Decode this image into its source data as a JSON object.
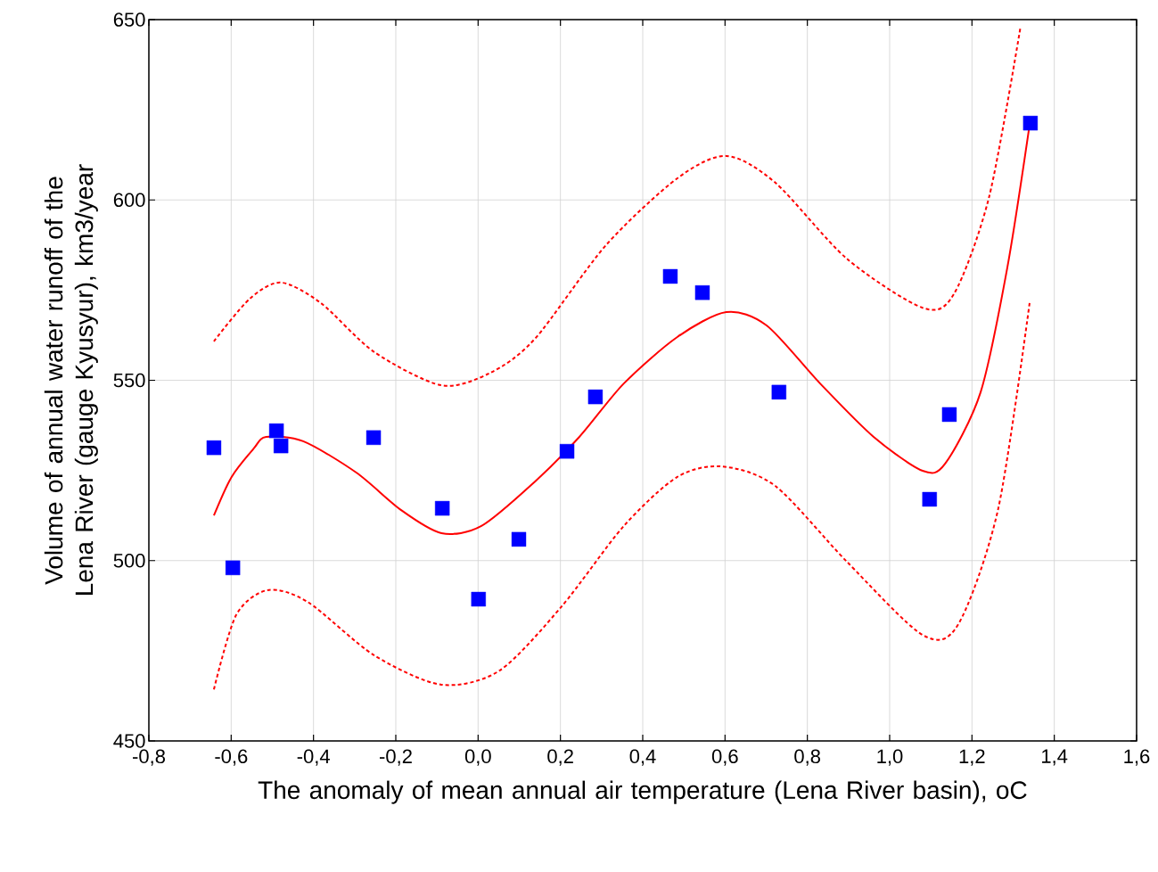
{
  "chart_data": {
    "type": "scatter",
    "xlabel": "The anomaly of mean annual air temperature (Lena River basin), oC",
    "ylabel": "Volume of annual water runoff of the Lena River (gauge Kyusyur), km3/year",
    "xlim": [
      -0.8,
      1.6
    ],
    "xticks": [
      {
        "value": -0.8,
        "label": "-0,8"
      },
      {
        "value": -0.6,
        "label": "-0,6"
      },
      {
        "value": -0.4,
        "label": "-0,4"
      },
      {
        "value": -0.2,
        "label": "-0,2"
      },
      {
        "value": 0.0,
        "label": "0,0"
      },
      {
        "value": 0.2,
        "label": "0,2"
      },
      {
        "value": 0.4,
        "label": "0,4"
      },
      {
        "value": 0.6,
        "label": "0,6"
      },
      {
        "value": 0.8,
        "label": "0,8"
      },
      {
        "value": 1.0,
        "label": "1,0"
      },
      {
        "value": 1.2,
        "label": "1,2"
      },
      {
        "value": 1.4,
        "label": "1,4"
      },
      {
        "value": 1.6,
        "label": "1,6"
      }
    ],
    "ylim": [
      450,
      650
    ],
    "yticks": [
      450,
      500,
      550,
      600,
      650
    ],
    "grid": true,
    "series": [
      {
        "type": "scatter",
        "color": "#0000ff",
        "marker": "square",
        "x": [
          -0.642,
          -0.596,
          -0.49,
          -0.479,
          -0.254,
          -0.087,
          0.001,
          0.099,
          0.216,
          0.285,
          0.467,
          0.545,
          0.731,
          1.097,
          1.145,
          1.342
        ],
        "values": [
          531.3,
          498.0,
          536.0,
          531.8,
          534.1,
          514.5,
          489.3,
          505.9,
          530.3,
          545.4,
          578.8,
          574.3,
          546.7,
          517.0,
          540.5,
          621.3
        ]
      },
      {
        "type": "line",
        "color": "#ff0000",
        "line_style": "solid",
        "x": [
          -0.642,
          -0.599,
          -0.545,
          -0.515,
          -0.425,
          -0.296,
          -0.187,
          -0.089,
          0.008,
          0.138,
          0.246,
          0.354,
          0.484,
          0.603,
          0.701,
          0.831,
          0.961,
          1.08,
          1.135,
          1.221,
          1.286,
          1.34
        ],
        "values": [
          512.5,
          523.2,
          531.1,
          534.3,
          533.1,
          524.4,
          514.0,
          507.6,
          509.6,
          521.9,
          534.3,
          549.1,
          562.0,
          568.9,
          565.2,
          549.1,
          534.3,
          524.9,
          526.9,
          546.7,
          581.3,
          620.8
        ]
      },
      {
        "type": "line",
        "color": "#ff0000",
        "line_style": "dashed",
        "x": [
          -0.642,
          -0.555,
          -0.479,
          -0.382,
          -0.252,
          -0.089,
          0.03,
          0.138,
          0.311,
          0.484,
          0.603,
          0.722,
          0.896,
          1.08,
          1.156,
          1.242,
          1.318
        ],
        "values": [
          560.8,
          572.6,
          577.1,
          571.4,
          557.8,
          548.6,
          552.1,
          561.5,
          587.5,
          606.0,
          612.2,
          604.8,
          583.7,
          570.1,
          573.9,
          601.0,
          648.0
        ]
      },
      {
        "type": "line",
        "color": "#ff0000",
        "line_style": "dashed",
        "x": [
          -0.642,
          -0.588,
          -0.512,
          -0.415,
          -0.252,
          -0.089,
          0.052,
          0.203,
          0.354,
          0.484,
          0.593,
          0.722,
          0.896,
          1.08,
          1.167,
          1.264,
          1.34
        ],
        "values": [
          464.3,
          484.9,
          491.8,
          488.6,
          473.7,
          465.6,
          469.5,
          487.3,
          509.6,
          523.2,
          526.1,
          520.7,
          499.7,
          479.4,
          482.4,
          514.5,
          571.4
        ]
      }
    ]
  }
}
